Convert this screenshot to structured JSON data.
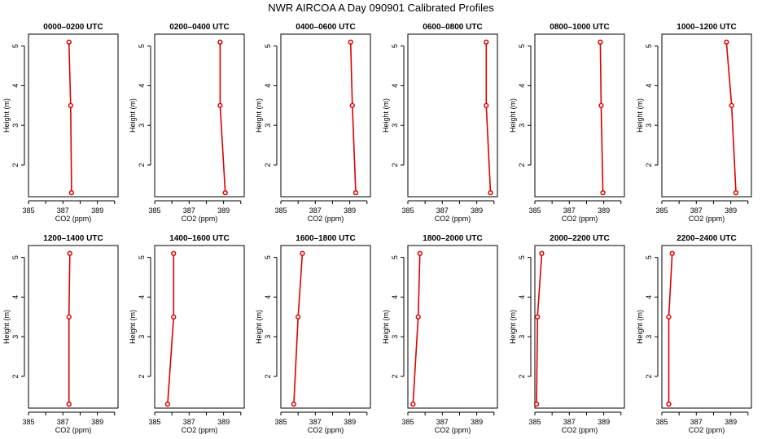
{
  "figure": {
    "title": "NWR AIRCOA A  Day 090901  Calibrated Profiles"
  },
  "chart_data": [
    {
      "type": "line",
      "title": "0000–0200 UTC",
      "xlabel": "CO2 (ppm)",
      "ylabel": "Height (m)",
      "xlim": [
        385,
        390.2
      ],
      "ylim": [
        1.2,
        5.3
      ],
      "xticks": [
        "385",
        "387",
        "389"
      ],
      "yticks": [
        "2",
        "3",
        "4",
        "5"
      ],
      "series": [
        {
          "x": [
            387.35,
            387.45,
            387.5
          ],
          "y": [
            5.1,
            3.5,
            1.3
          ]
        }
      ]
    },
    {
      "type": "line",
      "title": "0200–0400 UTC",
      "xlabel": "CO2 (ppm)",
      "ylabel": "Height (m)",
      "xlim": [
        385,
        390.2
      ],
      "ylim": [
        1.2,
        5.3
      ],
      "xticks": [
        "385",
        "387",
        "389"
      ],
      "yticks": [
        "2",
        "3",
        "4",
        "5"
      ],
      "series": [
        {
          "x": [
            388.8,
            388.8,
            389.1
          ],
          "y": [
            5.1,
            3.5,
            1.3
          ]
        }
      ]
    },
    {
      "type": "line",
      "title": "0400–0600 UTC",
      "xlabel": "CO2 (ppm)",
      "ylabel": "Height (m)",
      "xlim": [
        385,
        390.2
      ],
      "ylim": [
        1.2,
        5.3
      ],
      "xticks": [
        "385",
        "387",
        "389"
      ],
      "yticks": [
        "2",
        "3",
        "4",
        "5"
      ],
      "series": [
        {
          "x": [
            389.05,
            389.15,
            389.35
          ],
          "y": [
            5.1,
            3.5,
            1.3
          ]
        }
      ]
    },
    {
      "type": "line",
      "title": "0600–0800 UTC",
      "xlabel": "CO2 (ppm)",
      "ylabel": "Height (m)",
      "xlim": [
        385,
        390.2
      ],
      "ylim": [
        1.2,
        5.3
      ],
      "xticks": [
        "385",
        "387",
        "389"
      ],
      "yticks": [
        "2",
        "3",
        "4",
        "5"
      ],
      "series": [
        {
          "x": [
            389.55,
            389.55,
            389.8
          ],
          "y": [
            5.1,
            3.5,
            1.3
          ]
        }
      ]
    },
    {
      "type": "line",
      "title": "0800–1000 UTC",
      "xlabel": "CO2 (ppm)",
      "ylabel": "Height (m)",
      "xlim": [
        385,
        390.2
      ],
      "ylim": [
        1.2,
        5.3
      ],
      "xticks": [
        "385",
        "387",
        "389"
      ],
      "yticks": [
        "2",
        "3",
        "4",
        "5"
      ],
      "series": [
        {
          "x": [
            388.8,
            388.85,
            388.95
          ],
          "y": [
            5.1,
            3.5,
            1.3
          ]
        }
      ]
    },
    {
      "type": "line",
      "title": "1000–1200 UTC",
      "xlabel": "CO2 (ppm)",
      "ylabel": "Height (m)",
      "xlim": [
        385,
        390.2
      ],
      "ylim": [
        1.2,
        5.3
      ],
      "xticks": [
        "385",
        "387",
        "389"
      ],
      "yticks": [
        "2",
        "3",
        "4",
        "5"
      ],
      "series": [
        {
          "x": [
            388.75,
            389.05,
            389.3
          ],
          "y": [
            5.1,
            3.5,
            1.3
          ]
        }
      ]
    },
    {
      "type": "line",
      "title": "1200–1400 UTC",
      "xlabel": "CO2 (ppm)",
      "ylabel": "Height (m)",
      "xlim": [
        385,
        390.2
      ],
      "ylim": [
        1.2,
        5.3
      ],
      "xticks": [
        "385",
        "387",
        "389"
      ],
      "yticks": [
        "2",
        "3",
        "4",
        "5"
      ],
      "series": [
        {
          "x": [
            387.4,
            387.35,
            387.35
          ],
          "y": [
            5.1,
            3.5,
            1.3
          ]
        }
      ]
    },
    {
      "type": "line",
      "title": "1400–1600 UTC",
      "xlabel": "CO2 (ppm)",
      "ylabel": "Height (m)",
      "xlim": [
        385,
        390.2
      ],
      "ylim": [
        1.2,
        5.3
      ],
      "xticks": [
        "385",
        "387",
        "389"
      ],
      "yticks": [
        "2",
        "3",
        "4",
        "5"
      ],
      "series": [
        {
          "x": [
            386.1,
            386.1,
            385.75
          ],
          "y": [
            5.1,
            3.5,
            1.3
          ]
        }
      ]
    },
    {
      "type": "line",
      "title": "1600–1800 UTC",
      "xlabel": "CO2 (ppm)",
      "ylabel": "Height (m)",
      "xlim": [
        385,
        390.2
      ],
      "ylim": [
        1.2,
        5.3
      ],
      "xticks": [
        "385",
        "387",
        "389"
      ],
      "yticks": [
        "2",
        "3",
        "4",
        "5"
      ],
      "series": [
        {
          "x": [
            386.25,
            386.0,
            385.75
          ],
          "y": [
            5.1,
            3.5,
            1.3
          ]
        }
      ]
    },
    {
      "type": "line",
      "title": "1800–2000 UTC",
      "xlabel": "CO2 (ppm)",
      "ylabel": "Height (m)",
      "xlim": [
        385,
        390.2
      ],
      "ylim": [
        1.2,
        5.3
      ],
      "xticks": [
        "385",
        "387",
        "389"
      ],
      "yticks": [
        "2",
        "3",
        "4",
        "5"
      ],
      "series": [
        {
          "x": [
            385.7,
            385.6,
            385.3
          ],
          "y": [
            5.1,
            3.5,
            1.3
          ]
        }
      ]
    },
    {
      "type": "line",
      "title": "2000–2200 UTC",
      "xlabel": "CO2 (ppm)",
      "ylabel": "Height (m)",
      "xlim": [
        385,
        390.2
      ],
      "ylim": [
        1.2,
        5.3
      ],
      "xticks": [
        "385",
        "387",
        "389"
      ],
      "yticks": [
        "2",
        "3",
        "4",
        "5"
      ],
      "series": [
        {
          "x": [
            385.4,
            385.15,
            385.1
          ],
          "y": [
            5.1,
            3.5,
            1.3
          ]
        }
      ]
    },
    {
      "type": "line",
      "title": "2200–2400 UTC",
      "xlabel": "CO2 (ppm)",
      "ylabel": "Height (m)",
      "xlim": [
        385,
        390.2
      ],
      "ylim": [
        1.2,
        5.3
      ],
      "xticks": [
        "385",
        "387",
        "389"
      ],
      "yticks": [
        "2",
        "3",
        "4",
        "5"
      ],
      "series": [
        {
          "x": [
            385.6,
            385.4,
            385.4
          ],
          "y": [
            5.1,
            3.5,
            1.3
          ]
        }
      ]
    }
  ],
  "colors": {
    "series": "#dd0000",
    "axis": "#000000"
  }
}
